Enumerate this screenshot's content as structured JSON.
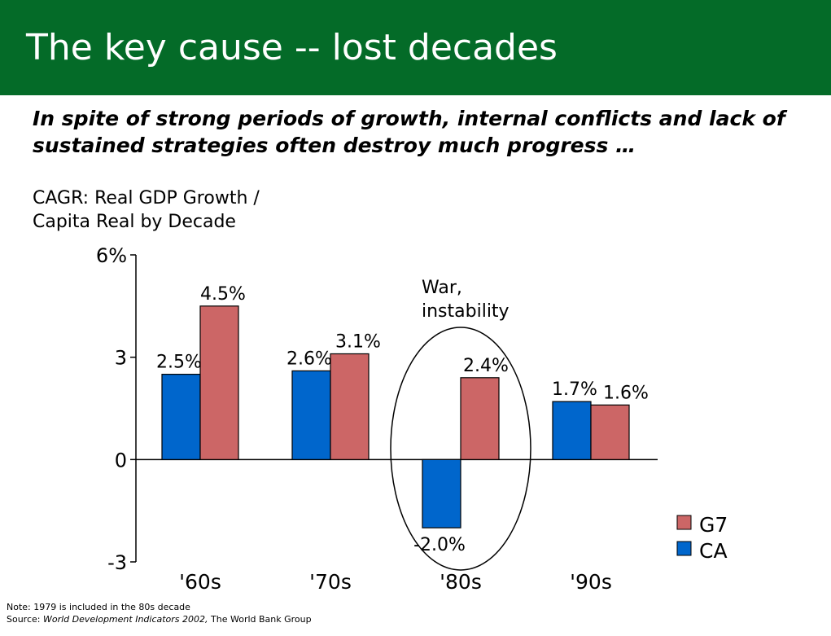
{
  "slide": {
    "title": "The key cause -- lost decades",
    "subtitle": "In spite of strong periods of growth, internal conflicts and lack of sustained strategies often destroy much progress …",
    "chart_title_line1": "CAGR: Real GDP Growth /",
    "chart_title_line2": "Capita Real by Decade",
    "annotation_line1": "War,",
    "annotation_line2": "instability",
    "note": "Note:  1979 is included in the 80s decade",
    "source_prefix": "Source: ",
    "source_title": "World Development Indicators 2002,",
    "source_suffix": " The World Bank Group"
  },
  "colors": {
    "header_bg": "#046b28",
    "ca": "#0066cc",
    "g7": "#cc6666"
  },
  "chart_data": {
    "type": "bar",
    "title": "CAGR: Real GDP Growth / Capita Real by Decade",
    "categories": [
      "'60s",
      "'70s",
      "'80s",
      "'90s"
    ],
    "series": [
      {
        "name": "CA",
        "values": [
          2.5,
          2.6,
          -2.0,
          1.7
        ],
        "labels": [
          "2.5%",
          "2.6%",
          "-2.0%",
          "1.7%"
        ]
      },
      {
        "name": "G7",
        "values": [
          4.5,
          3.1,
          2.4,
          1.6
        ],
        "labels": [
          "4.5%",
          "3.1%",
          "2.4%",
          "1.6%"
        ]
      }
    ],
    "ylim": [
      -3,
      6
    ],
    "yticks": [
      {
        "value": 6,
        "label": "6%"
      },
      {
        "value": 3,
        "label": "3"
      },
      {
        "value": 0,
        "label": "0"
      },
      {
        "value": -3,
        "label": "-3"
      }
    ],
    "legend": [
      {
        "name": "G7",
        "color": "#cc6666"
      },
      {
        "name": "CA",
        "color": "#0066cc"
      }
    ],
    "legend_position": "bottom-right",
    "grid": false,
    "xlabel": "",
    "ylabel": ""
  }
}
